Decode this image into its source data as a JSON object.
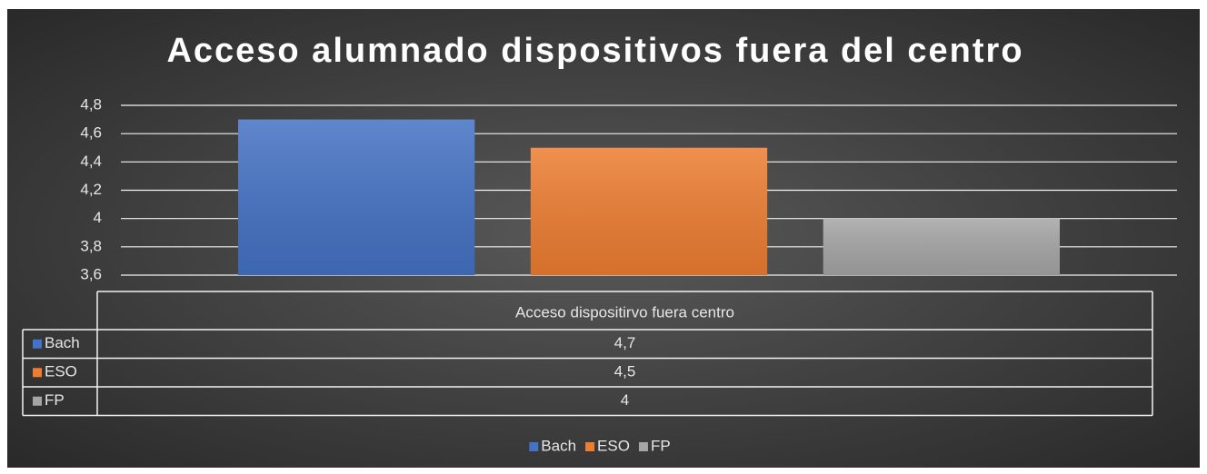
{
  "chart_data": {
    "type": "bar",
    "title": "Acceso alumnado dispositivos fuera del centro",
    "categories": [
      "Acceso dispositirvo fuera centro"
    ],
    "series": [
      {
        "name": "Bach",
        "color": "#4472c4",
        "values": [
          4.7
        ],
        "value_labels": [
          "4,7"
        ]
      },
      {
        "name": "ESO",
        "color": "#ed7d31",
        "values": [
          4.5
        ],
        "value_labels": [
          "4,5"
        ]
      },
      {
        "name": "FP",
        "color": "#a5a5a5",
        "values": [
          4
        ],
        "value_labels": [
          "4"
        ]
      }
    ],
    "ylim": [
      3.6,
      4.8
    ],
    "yticks": [
      {
        "value": 3.6,
        "label": "3,6"
      },
      {
        "value": 3.8,
        "label": "3,8"
      },
      4,
      {
        "value": 4.2,
        "label": "4,2"
      },
      {
        "value": 4.4,
        "label": "4,4"
      },
      {
        "value": 4.6,
        "label": "4,6"
      },
      {
        "value": 4.8,
        "label": "4,8"
      }
    ],
    "grid": true,
    "legend": "bottom"
  }
}
